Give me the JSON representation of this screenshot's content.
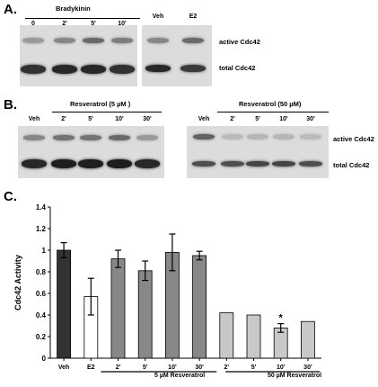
{
  "panelA": {
    "letter": "A.",
    "bradykinin_title": "Bradykinin",
    "bk_lanes": [
      "0",
      "2'",
      "5'",
      "10'"
    ],
    "veh_e2_lanes": [
      "Veh",
      "E2"
    ],
    "row_labels": [
      "active Cdc42",
      "total Cdc42"
    ]
  },
  "panelB": {
    "letter": "B.",
    "left_title": "Resveratrol (5 µM )",
    "right_title": "Resveratrol (50 µM)",
    "left_lanes": [
      "Veh",
      "2'",
      "5'",
      "10'",
      "30'"
    ],
    "right_lanes": [
      "Veh",
      "2'",
      "5'",
      "10'",
      "30'"
    ],
    "row_labels": [
      "active Cdc42",
      "total Cdc42"
    ]
  },
  "panelC": {
    "letter": "C.",
    "group_labels": [
      "5 µM Resveratrol",
      "50 µM Resveratrol"
    ],
    "annotation": "*"
  },
  "chart_data": {
    "type": "bar",
    "ylabel": "Cdc42 Activity",
    "xlabel": "",
    "ylim": [
      0,
      1.4
    ],
    "yticks": [
      "0",
      "0.2",
      "0.4",
      "0.6",
      "0.8",
      "1",
      "1.2",
      "1.4"
    ],
    "categories": [
      "Veh",
      "E2",
      "2'",
      "5'",
      "10'",
      "30'",
      "2'",
      "5'",
      "10'",
      "30'"
    ],
    "values": [
      1.0,
      0.57,
      0.92,
      0.81,
      0.98,
      0.95,
      0.42,
      0.4,
      0.28,
      0.34
    ],
    "errors": [
      0.07,
      0.17,
      0.08,
      0.09,
      0.17,
      0.04,
      null,
      null,
      0.04,
      null
    ],
    "colors": [
      "#333333",
      "#ffffff",
      "#888888",
      "#888888",
      "#888888",
      "#888888",
      "#c8c8c8",
      "#c8c8c8",
      "#c8c8c8",
      "#c8c8c8"
    ],
    "significant_index": 8
  }
}
